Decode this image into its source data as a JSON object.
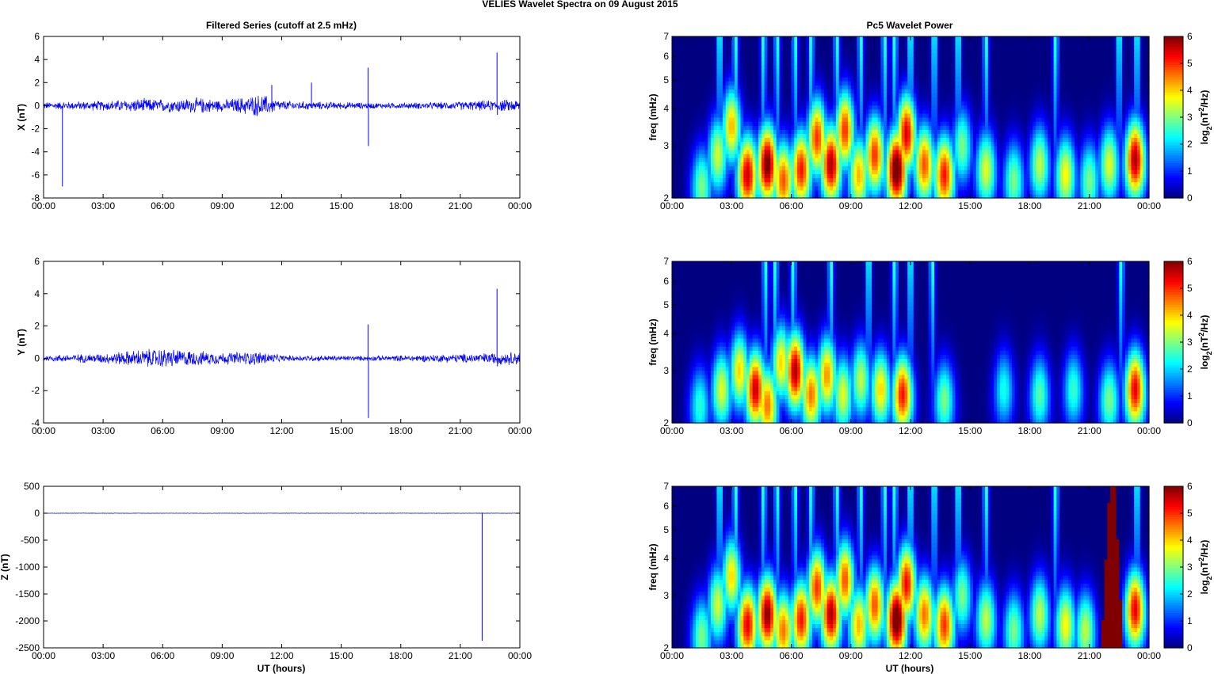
{
  "figure": {
    "title": "VELIES Wavelet Spectra on 09 August    2015",
    "left_title": "Filtered Series (cutoff at 2.5 mHz)",
    "right_title": "Pc5 Wavelet Power",
    "xlabel": "UT (hours)",
    "time_ticks": [
      "00:00",
      "03:00",
      "06:00",
      "09:00",
      "12:00",
      "15:00",
      "18:00",
      "21:00",
      "00:00"
    ],
    "colors": {
      "series": "#0000ff",
      "background": "#00008f"
    }
  },
  "chart_data": [
    {
      "type": "line",
      "component": "X",
      "ylabel": "X (nT)",
      "xlim": [
        0,
        24
      ],
      "ylim": [
        -8,
        6
      ],
      "yticks": [
        6,
        4,
        2,
        0,
        -2,
        -4,
        -6,
        -8
      ],
      "noise_profile": {
        "hours": [
          0,
          3,
          5,
          6,
          8,
          9,
          11,
          12,
          13,
          15,
          17,
          20,
          22,
          24
        ],
        "amplitude": [
          0.25,
          0.35,
          0.5,
          0.45,
          0.55,
          0.4,
          0.8,
          0.35,
          0.3,
          0.25,
          0.2,
          0.25,
          0.35,
          0.45
        ]
      },
      "spikes": [
        {
          "x": 0.95,
          "y": -7.0
        },
        {
          "x": 11.5,
          "y": 1.8
        },
        {
          "x": 13.5,
          "y": 2.0
        },
        {
          "x": 16.35,
          "y": 3.3
        },
        {
          "x": 16.37,
          "y": -3.5
        },
        {
          "x": 22.85,
          "y": 4.6
        },
        {
          "x": 22.87,
          "y": -0.8
        }
      ]
    },
    {
      "type": "line",
      "component": "Y",
      "ylabel": "Y (nT)",
      "xlim": [
        0,
        24
      ],
      "ylim": [
        -4,
        6
      ],
      "yticks": [
        6,
        4,
        2,
        0,
        -2,
        -4
      ],
      "noise_profile": {
        "hours": [
          0,
          3,
          5,
          6,
          8,
          9,
          11,
          12,
          14,
          16,
          18,
          20,
          22,
          24
        ],
        "amplitude": [
          0.15,
          0.25,
          0.45,
          0.5,
          0.35,
          0.3,
          0.35,
          0.15,
          0.15,
          0.12,
          0.15,
          0.2,
          0.25,
          0.35
        ]
      },
      "spikes": [
        {
          "x": 16.35,
          "y": 2.1
        },
        {
          "x": 16.37,
          "y": -3.7
        },
        {
          "x": 22.85,
          "y": 4.3
        },
        {
          "x": 22.87,
          "y": -0.5
        }
      ]
    },
    {
      "type": "line",
      "component": "Z",
      "ylabel": "Z (nT)",
      "xlim": [
        0,
        24
      ],
      "ylim": [
        -2500,
        500
      ],
      "yticks": [
        500,
        0,
        -500,
        -1000,
        -1500,
        -2000,
        -2500
      ],
      "noise_profile": {
        "hours": [
          0,
          24
        ],
        "amplitude": [
          3,
          3
        ]
      },
      "spikes": [
        {
          "x": 22.1,
          "y": -2370
        },
        {
          "x": 22.12,
          "y": 10
        }
      ]
    },
    {
      "type": "heatmap",
      "component": "X",
      "ylabel": "freq (mHz)",
      "yscale": "log",
      "ylim": [
        2,
        7
      ],
      "yticks": [
        7,
        6,
        5,
        4,
        3,
        2
      ],
      "clim": [
        0,
        6
      ],
      "colorbar_label": "log2(nT2/Hz)",
      "colorbar_ticks": [
        6,
        5,
        4,
        3,
        2,
        1,
        0
      ],
      "blobs": [
        {
          "t": 1.5,
          "f": 2.2,
          "p": 3.0
        },
        {
          "t": 2.3,
          "f": 2.8,
          "p": 3.5
        },
        {
          "t": 3.0,
          "f": 3.5,
          "p": 4.2
        },
        {
          "t": 3.8,
          "f": 2.4,
          "p": 5.6
        },
        {
          "t": 4.8,
          "f": 2.6,
          "p": 6.2
        },
        {
          "t": 5.6,
          "f": 2.3,
          "p": 4.8
        },
        {
          "t": 6.5,
          "f": 2.5,
          "p": 5.2
        },
        {
          "t": 7.3,
          "f": 3.2,
          "p": 5.0
        },
        {
          "t": 8.0,
          "f": 2.6,
          "p": 5.8
        },
        {
          "t": 8.7,
          "f": 3.4,
          "p": 5.0
        },
        {
          "t": 9.4,
          "f": 2.4,
          "p": 4.2
        },
        {
          "t": 10.2,
          "f": 2.8,
          "p": 5.0
        },
        {
          "t": 11.3,
          "f": 2.5,
          "p": 6.5
        },
        {
          "t": 11.8,
          "f": 3.3,
          "p": 5.5
        },
        {
          "t": 12.7,
          "f": 2.6,
          "p": 4.8
        },
        {
          "t": 13.7,
          "f": 2.4,
          "p": 5.2
        },
        {
          "t": 14.6,
          "f": 3.0,
          "p": 3.0
        },
        {
          "t": 15.8,
          "f": 2.5,
          "p": 3.6
        },
        {
          "t": 17.2,
          "f": 2.3,
          "p": 3.0
        },
        {
          "t": 18.5,
          "f": 2.6,
          "p": 3.4
        },
        {
          "t": 19.8,
          "f": 2.4,
          "p": 3.8
        },
        {
          "t": 21.0,
          "f": 2.3,
          "p": 3.0
        },
        {
          "t": 22.0,
          "f": 2.6,
          "p": 3.6
        },
        {
          "t": 23.3,
          "f": 2.7,
          "p": 5.8
        }
      ],
      "streaks": [
        2.4,
        3.2,
        4.6,
        5.3,
        6.2,
        7.0,
        8.3,
        9.5,
        10.7,
        11.2,
        12.0,
        13.2,
        14.4,
        15.8,
        19.3,
        22.5,
        23.4
      ]
    },
    {
      "type": "heatmap",
      "component": "Y",
      "ylabel": "freq (mHz)",
      "yscale": "log",
      "ylim": [
        2,
        7
      ],
      "yticks": [
        7,
        6,
        5,
        4,
        3,
        2
      ],
      "clim": [
        0,
        6
      ],
      "colorbar_label": "log2(nT2/Hz)",
      "colorbar_ticks": [
        6,
        5,
        4,
        3,
        2,
        1,
        0
      ],
      "blobs": [
        {
          "t": 1.4,
          "f": 2.3,
          "p": 2.5
        },
        {
          "t": 2.5,
          "f": 2.6,
          "p": 3.6
        },
        {
          "t": 3.4,
          "f": 3.0,
          "p": 4.0
        },
        {
          "t": 4.2,
          "f": 2.6,
          "p": 5.6
        },
        {
          "t": 4.8,
          "f": 2.3,
          "p": 4.6
        },
        {
          "t": 5.5,
          "f": 3.2,
          "p": 4.0
        },
        {
          "t": 6.2,
          "f": 3.0,
          "p": 5.8
        },
        {
          "t": 7.0,
          "f": 2.5,
          "p": 4.6
        },
        {
          "t": 7.8,
          "f": 2.9,
          "p": 4.4
        },
        {
          "t": 8.6,
          "f": 2.5,
          "p": 3.6
        },
        {
          "t": 9.5,
          "f": 2.8,
          "p": 3.4
        },
        {
          "t": 10.5,
          "f": 2.6,
          "p": 4.0
        },
        {
          "t": 11.6,
          "f": 2.5,
          "p": 5.2
        },
        {
          "t": 13.7,
          "f": 2.4,
          "p": 3.0
        },
        {
          "t": 16.7,
          "f": 2.6,
          "p": 2.4
        },
        {
          "t": 18.5,
          "f": 2.5,
          "p": 2.8
        },
        {
          "t": 20.2,
          "f": 2.6,
          "p": 2.6
        },
        {
          "t": 22.0,
          "f": 2.4,
          "p": 3.0
        },
        {
          "t": 23.3,
          "f": 2.6,
          "p": 5.4
        }
      ],
      "streaks": [
        4.7,
        5.2,
        6.1,
        8.0,
        9.9,
        11.2,
        12.0,
        13.1,
        22.6
      ]
    },
    {
      "type": "heatmap",
      "component": "Z",
      "ylabel": "freq (mHz)",
      "yscale": "log",
      "ylim": [
        2,
        7
      ],
      "yticks": [
        7,
        6,
        5,
        4,
        3,
        2
      ],
      "clim": [
        0,
        6
      ],
      "colorbar_label": "log2(nT2/Hz)",
      "colorbar_ticks": [
        6,
        5,
        4,
        3,
        2,
        1,
        0
      ],
      "blobs": [
        {
          "t": 1.5,
          "f": 2.2,
          "p": 3.0
        },
        {
          "t": 2.3,
          "f": 2.8,
          "p": 3.5
        },
        {
          "t": 3.0,
          "f": 3.5,
          "p": 4.0
        },
        {
          "t": 3.8,
          "f": 2.4,
          "p": 5.4
        },
        {
          "t": 4.8,
          "f": 2.6,
          "p": 6.0
        },
        {
          "t": 5.6,
          "f": 2.3,
          "p": 4.6
        },
        {
          "t": 6.5,
          "f": 2.5,
          "p": 5.2
        },
        {
          "t": 7.3,
          "f": 3.2,
          "p": 5.0
        },
        {
          "t": 8.0,
          "f": 2.6,
          "p": 5.8
        },
        {
          "t": 8.7,
          "f": 3.4,
          "p": 4.8
        },
        {
          "t": 9.4,
          "f": 2.4,
          "p": 4.2
        },
        {
          "t": 10.2,
          "f": 2.8,
          "p": 4.8
        },
        {
          "t": 11.3,
          "f": 2.5,
          "p": 6.5
        },
        {
          "t": 11.8,
          "f": 3.3,
          "p": 5.3
        },
        {
          "t": 12.7,
          "f": 2.6,
          "p": 4.6
        },
        {
          "t": 13.7,
          "f": 2.4,
          "p": 5.0
        },
        {
          "t": 14.6,
          "f": 3.0,
          "p": 3.0
        },
        {
          "t": 15.8,
          "f": 2.5,
          "p": 3.4
        },
        {
          "t": 17.2,
          "f": 2.3,
          "p": 3.0
        },
        {
          "t": 18.5,
          "f": 2.6,
          "p": 3.4
        },
        {
          "t": 19.8,
          "f": 2.4,
          "p": 3.8
        },
        {
          "t": 20.8,
          "f": 2.3,
          "p": 3.4
        },
        {
          "t": 23.3,
          "f": 2.7,
          "p": 5.4
        }
      ],
      "streaks": [
        2.4,
        3.2,
        4.6,
        5.3,
        6.2,
        7.0,
        8.3,
        9.5,
        10.7,
        11.2,
        12.0,
        13.2,
        14.4,
        15.8,
        19.3,
        23.4
      ],
      "saturated_band": {
        "t_start": 21.6,
        "t_end": 22.7,
        "power": 6
      }
    }
  ]
}
